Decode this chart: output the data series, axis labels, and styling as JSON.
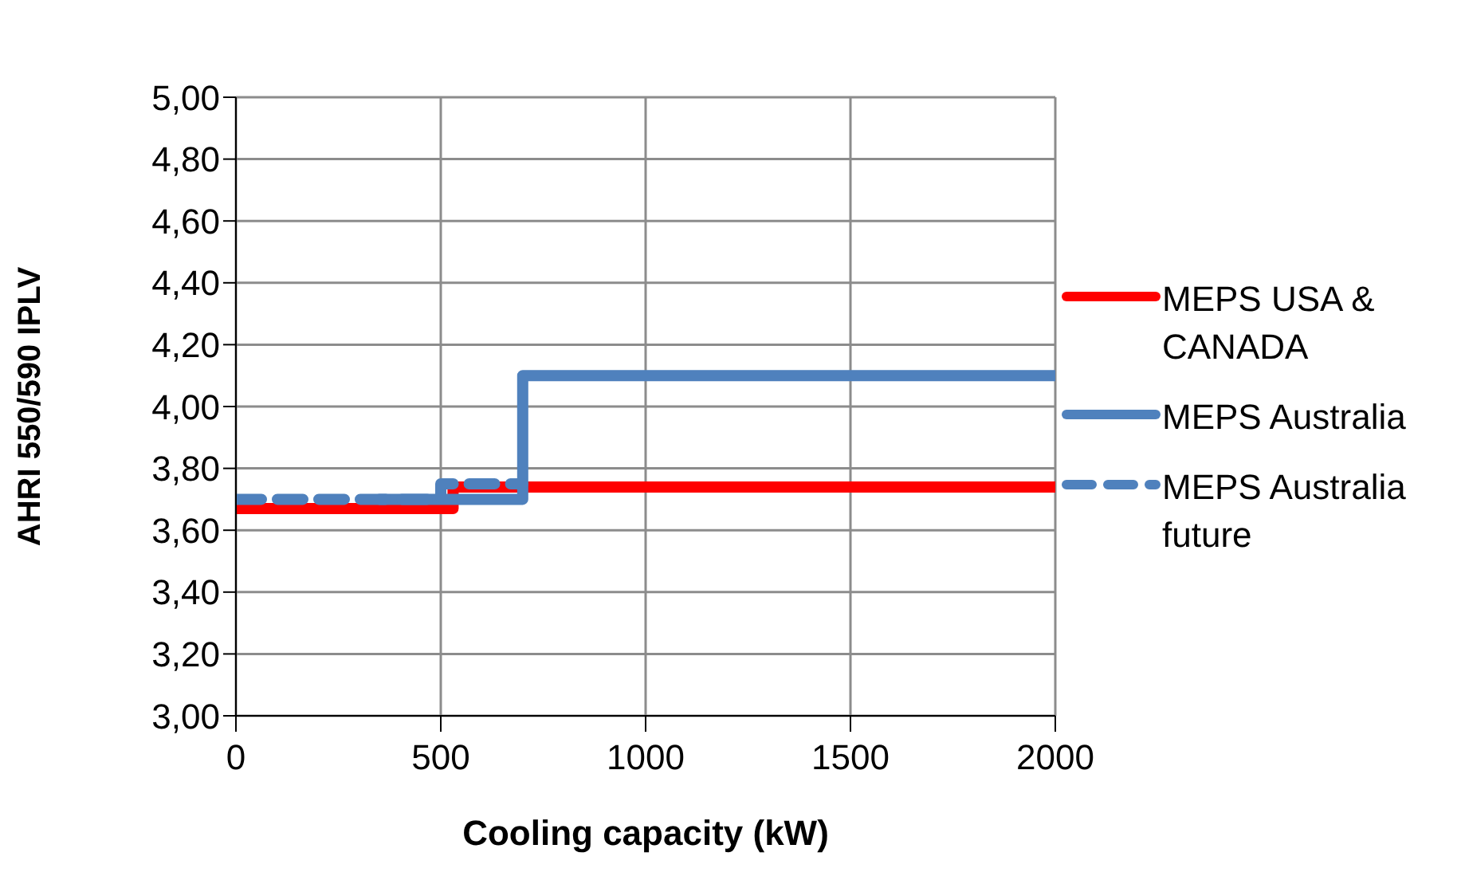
{
  "chart_data": {
    "type": "step",
    "xlabel": "Cooling capacity (kW)",
    "ylabel": "AHRI 550/590 IPLV",
    "xlim": [
      0,
      2000
    ],
    "xticks": [
      0,
      500,
      1000,
      1500,
      2000
    ],
    "ylim": [
      3,
      5
    ],
    "yticks": [
      {
        "value": 3,
        "label": "3,00"
      },
      {
        "value": 3.2,
        "label": "3,20"
      },
      {
        "value": 3.4,
        "label": "3,40"
      },
      {
        "value": 3.6,
        "label": "3,60"
      },
      {
        "value": 3.8,
        "label": "3,80"
      },
      {
        "value": 4,
        "label": "4,00"
      },
      {
        "value": 4.2,
        "label": "4,20"
      },
      {
        "value": 4.4,
        "label": "4,40"
      },
      {
        "value": 4.6,
        "label": "4,60"
      },
      {
        "value": 4.8,
        "label": "4,80"
      },
      {
        "value": 5,
        "label": "5,00"
      }
    ],
    "grid": true,
    "legend": "right",
    "marker": "none",
    "series": [
      {
        "name": "MEPS USA & CANADA",
        "color": "#ff0000",
        "x": [
          0,
          530,
          2000
        ],
        "values": [
          3.67,
          3.74,
          3.74
        ],
        "line_style": "solid"
      },
      {
        "name": "MEPS Australia",
        "color": "#4f81bd",
        "x": [
          350,
          700,
          2000
        ],
        "values": [
          3.7,
          4.1,
          4.1
        ],
        "line_style": "solid"
      },
      {
        "name": "MEPS Australia future",
        "color": "#4f81bd",
        "x": [
          0,
          500,
          700
        ],
        "values": [
          3.7,
          3.75,
          3.75
        ],
        "line_style": "dashed"
      }
    ]
  }
}
